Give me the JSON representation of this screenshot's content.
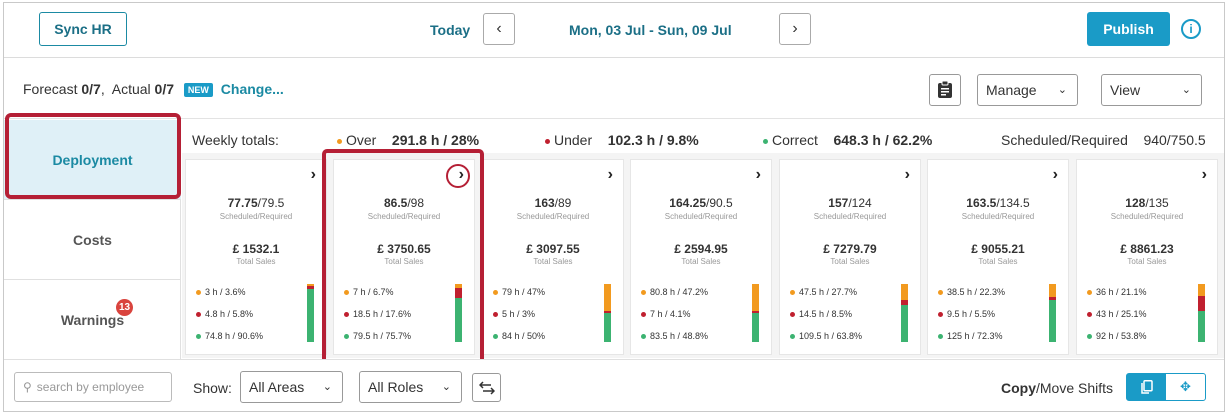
{
  "header": {
    "sync_label": "Sync HR",
    "today_label": "Today",
    "prev_label": "‹",
    "next_label": "›",
    "date_range": "Mon, 03 Jul - Sun, 09 Jul",
    "publish_label": "Publish",
    "info_icon": "i"
  },
  "toolbar": {
    "forecast_label": "Forecast",
    "forecast_value": "0/7",
    "actual_label": "Actual",
    "actual_value": "0/7",
    "new_badge": "NEW",
    "change_link": "Change...",
    "manage_label": "Manage",
    "view_label": "View"
  },
  "sidebar": {
    "deployment": "Deployment",
    "costs": "Costs",
    "warnings": "Warnings",
    "warnings_count": "13"
  },
  "weekly": {
    "label": "Weekly totals:",
    "over_label": "Over",
    "over_value": "291.8 h  /  28%",
    "under_label": "Under",
    "under_value": "102.3 h  /  9.8%",
    "correct_label": "Correct",
    "correct_value": "648.3 h  /  62.2%",
    "sched_label": "Scheduled/Required",
    "sched_value": "940/750.5"
  },
  "colors": {
    "over": "#f29a1f",
    "under": "#c0202f",
    "correct": "#3cb371",
    "accent": "#1a9bc7"
  },
  "labels": {
    "sched_req": "Scheduled/Required",
    "total_sales": "Total Sales"
  },
  "days": [
    {
      "scheduled": "77.75",
      "required": "/79.5",
      "sales": "£ 1532.1",
      "over": "3 h  /  3.6%",
      "under": "4.8 h  /  5.8%",
      "correct": "74.8 h  /  90.6%",
      "fractions": {
        "over": 0.036,
        "under": 0.058,
        "correct": 0.906
      }
    },
    {
      "scheduled": "86.5",
      "required": "/98",
      "sales": "£ 3750.65",
      "over": "7 h  /  6.7%",
      "under": "18.5 h  /  17.6%",
      "correct": "79.5 h  /  75.7%",
      "fractions": {
        "over": 0.067,
        "under": 0.176,
        "correct": 0.757
      }
    },
    {
      "scheduled": "163",
      "required": "/89",
      "sales": "£ 3097.55",
      "over": "79 h  /  47%",
      "under": "5 h  /  3%",
      "correct": "84 h  /  50%",
      "fractions": {
        "over": 0.47,
        "under": 0.03,
        "correct": 0.5
      }
    },
    {
      "scheduled": "164.25",
      "required": "/90.5",
      "sales": "£ 2594.95",
      "over": "80.8 h  /  47.2%",
      "under": "7 h  /  4.1%",
      "correct": "83.5 h  /  48.8%",
      "fractions": {
        "over": 0.472,
        "under": 0.041,
        "correct": 0.488
      }
    },
    {
      "scheduled": "157",
      "required": "/124",
      "sales": "£ 7279.79",
      "over": "47.5 h  /  27.7%",
      "under": "14.5 h  /  8.5%",
      "correct": "109.5 h  /  63.8%",
      "fractions": {
        "over": 0.277,
        "under": 0.085,
        "correct": 0.638
      }
    },
    {
      "scheduled": "163.5",
      "required": "/134.5",
      "sales": "£ 9055.21",
      "over": "38.5 h  /  22.3%",
      "under": "9.5 h  /  5.5%",
      "correct": "125 h  /  72.3%",
      "fractions": {
        "over": 0.223,
        "under": 0.055,
        "correct": 0.723
      }
    },
    {
      "scheduled": "128",
      "required": "/135",
      "sales": "£ 8861.23",
      "over": "36 h  /  21.1%",
      "under": "43 h  /  25.1%",
      "correct": "92 h  /  53.8%",
      "fractions": {
        "over": 0.211,
        "under": 0.251,
        "correct": 0.538
      }
    }
  ],
  "bottom": {
    "search_placeholder": "search by employee",
    "show_label": "Show:",
    "areas_label": "All Areas",
    "roles_label": "All Roles",
    "copy_label": "Copy",
    "move_label": "/Move Shifts"
  }
}
